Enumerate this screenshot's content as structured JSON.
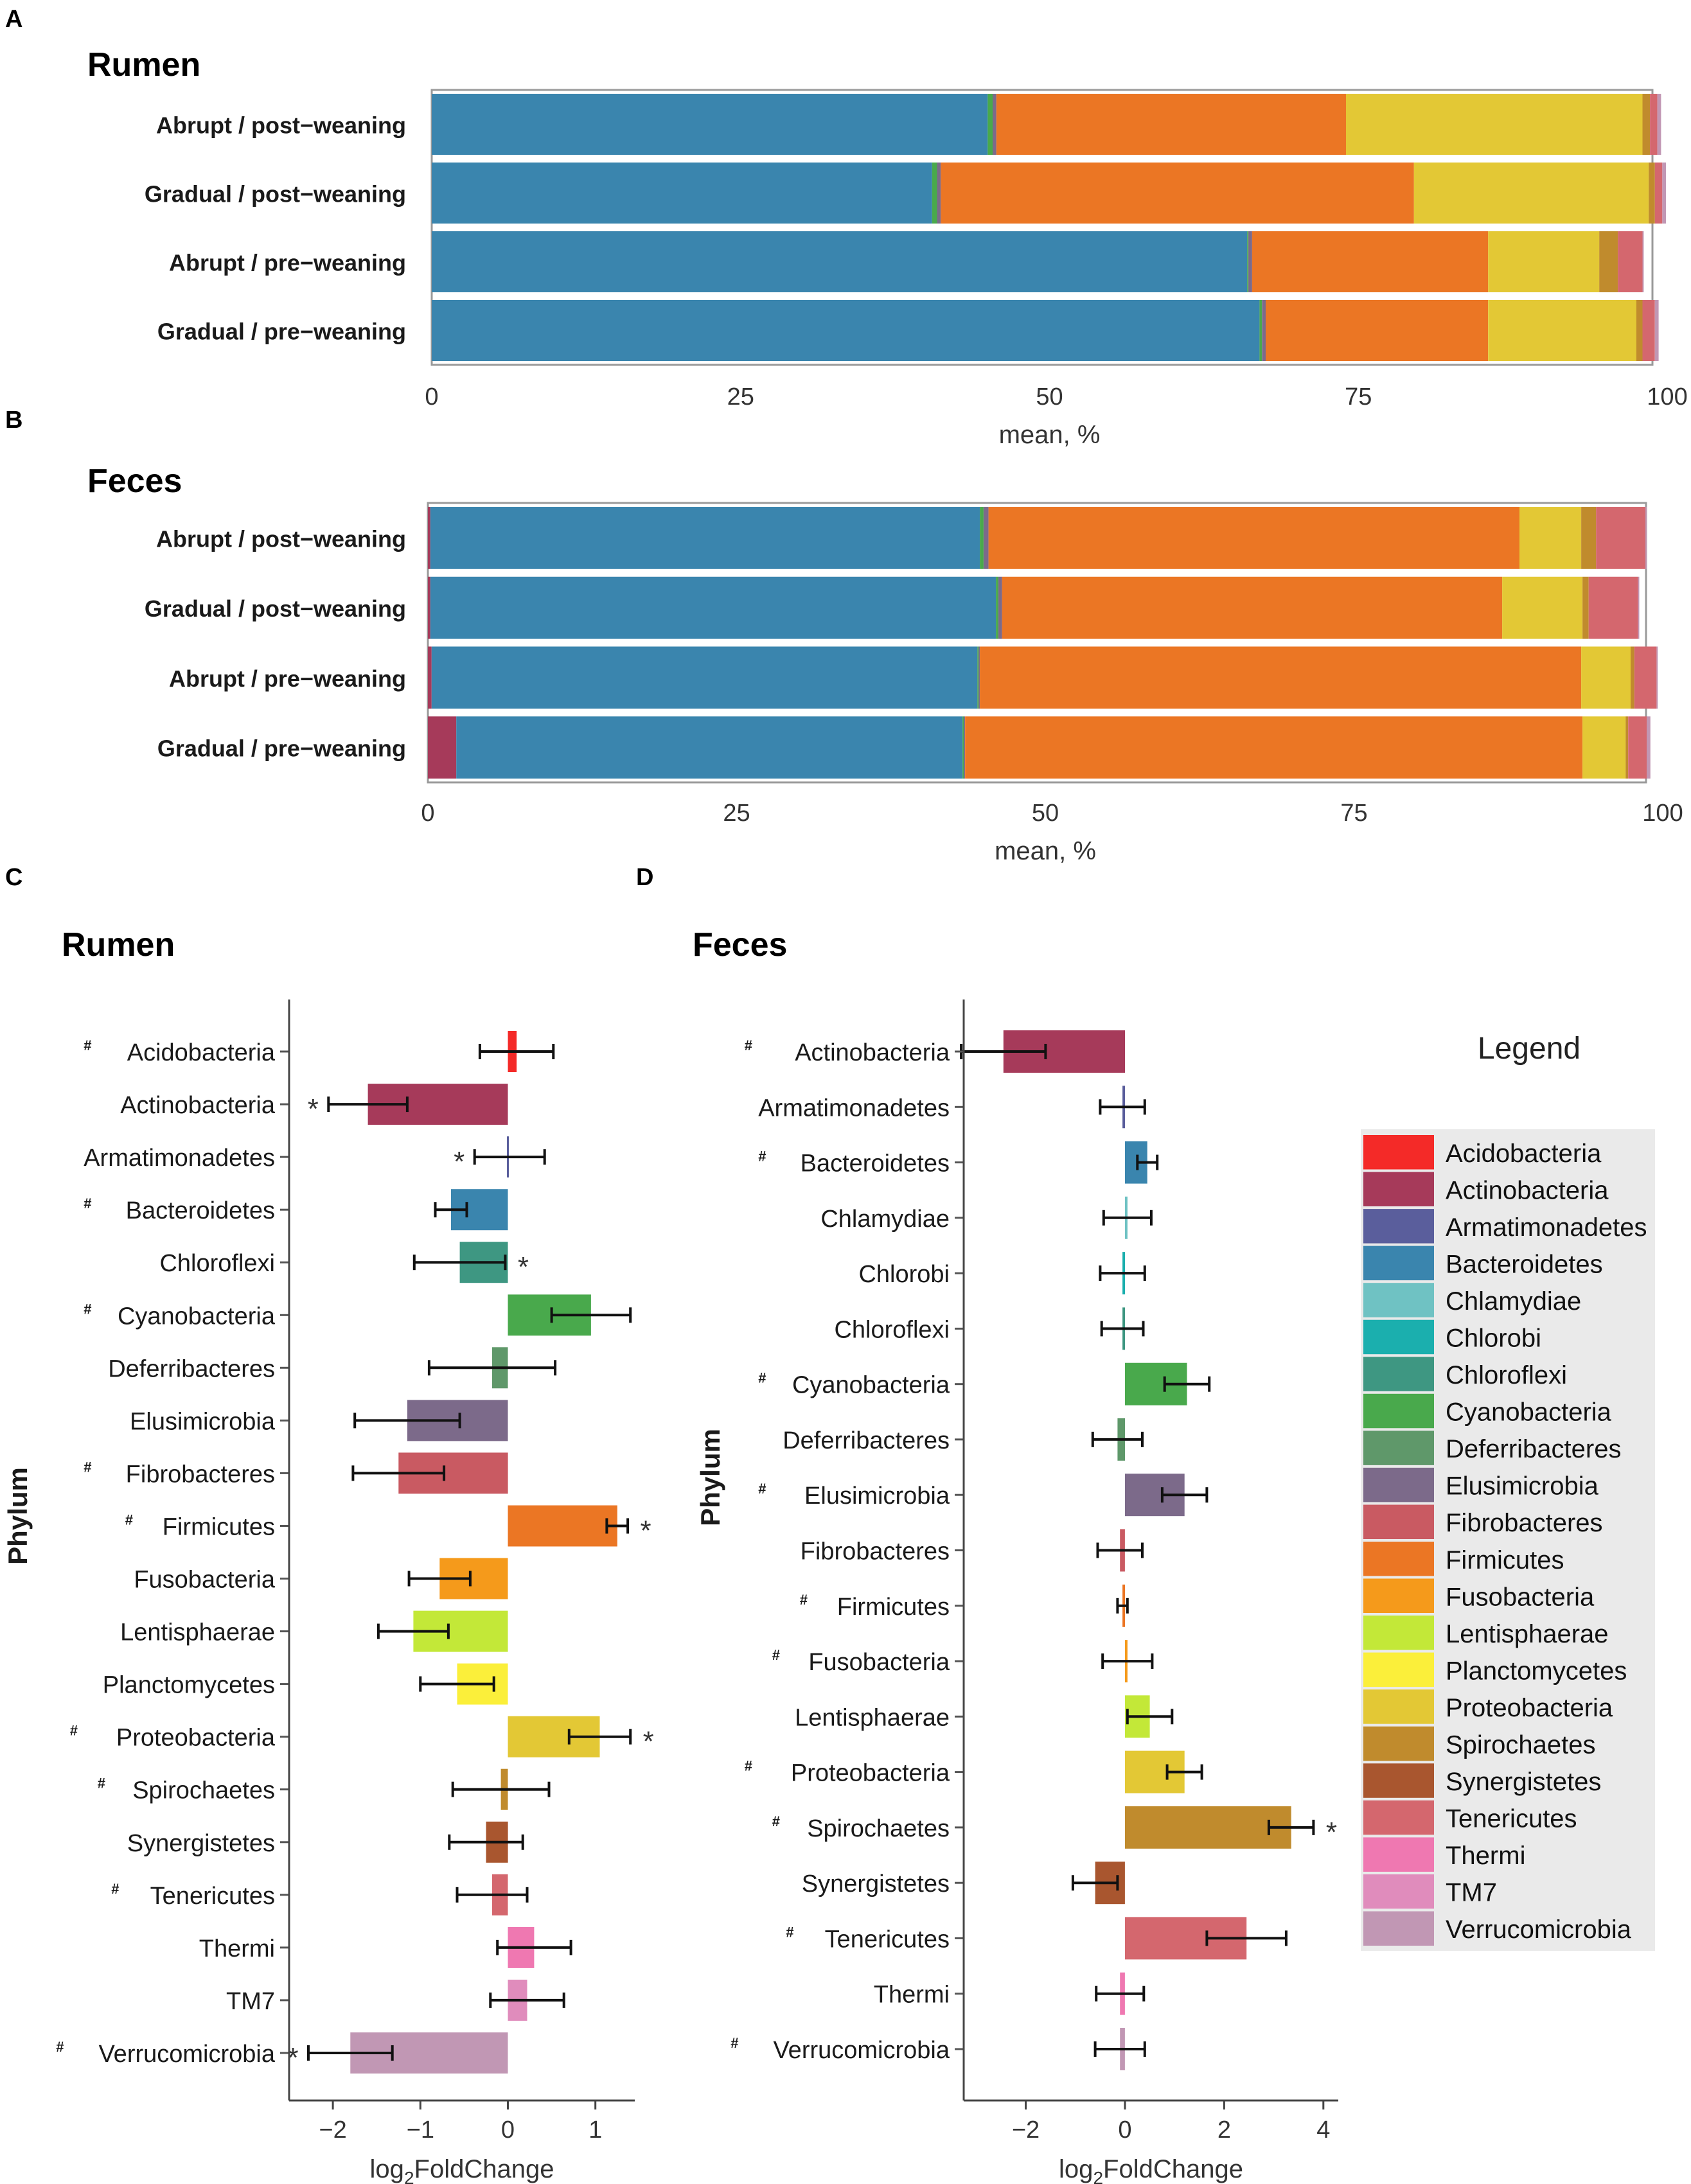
{
  "figure": {
    "panel_labels": [
      "A",
      "B",
      "C",
      "D"
    ],
    "titles": {
      "A": "Rumen",
      "B": "Feces",
      "C": "Rumen",
      "D": "Feces"
    }
  },
  "legend": {
    "title": "Legend",
    "items": [
      {
        "name": "Acidobacteria",
        "color": "#F42A28"
      },
      {
        "name": "Actinobacteria",
        "color": "#A63A5A"
      },
      {
        "name": "Armatimonadetes",
        "color": "#5A5E9C"
      },
      {
        "name": "Bacteroidetes",
        "color": "#3A85AE"
      },
      {
        "name": "Chlamydiae",
        "color": "#6FC2C3"
      },
      {
        "name": "Chlorobi",
        "color": "#1BAFAE"
      },
      {
        "name": "Chloroflexi",
        "color": "#3E9782"
      },
      {
        "name": "Cyanobacteria",
        "color": "#49A94C"
      },
      {
        "name": "Deferribacteres",
        "color": "#5F986A"
      },
      {
        "name": "Elusimicrobia",
        "color": "#7C6A8A"
      },
      {
        "name": "Fibrobacteres",
        "color": "#C95A62"
      },
      {
        "name": "Firmicutes",
        "color": "#EB7624"
      },
      {
        "name": "Fusobacteria",
        "color": "#F59A1B"
      },
      {
        "name": "Lentisphaerae",
        "color": "#C3E838"
      },
      {
        "name": "Planctomycetes",
        "color": "#FBEF3A"
      },
      {
        "name": "Proteobacteria",
        "color": "#E3C835"
      },
      {
        "name": "Spirochaetes",
        "color": "#C08B2D"
      },
      {
        "name": "Synergistetes",
        "color": "#A9562F"
      },
      {
        "name": "Tenericutes",
        "color": "#D4676E"
      },
      {
        "name": "Thermi",
        "color": "#EF78B1"
      },
      {
        "name": "TM7",
        "color": "#E08CBC"
      },
      {
        "name": "Verrucomicrobia",
        "color": "#C197B4"
      }
    ]
  },
  "chart_data": [
    {
      "panel": "A",
      "type": "bar",
      "stacked": true,
      "orientation": "horizontal",
      "title": "Rumen",
      "xlabel": "mean, %",
      "xlim": [
        0,
        100
      ],
      "xticks": [
        "0",
        "25",
        "50",
        "75",
        "100"
      ],
      "categories": [
        "Abrupt / post−weaning",
        "Gradual / post−weaning",
        "Abrupt / pre−weaning",
        "Gradual / pre−weaning"
      ],
      "series": [
        {
          "name": "Bacteroidetes",
          "values": [
            45.0,
            40.5,
            66.0,
            67.0
          ]
        },
        {
          "name": "Cyanobacteria",
          "values": [
            0.4,
            0.4,
            0.1,
            0.2
          ]
        },
        {
          "name": "Elusimicrobia",
          "values": [
            0.3,
            0.3,
            0.3,
            0.3
          ]
        },
        {
          "name": "Firmicutes",
          "values": [
            28.3,
            38.3,
            19.1,
            18.0
          ]
        },
        {
          "name": "Proteobacteria",
          "values": [
            24.0,
            19.0,
            9.0,
            12.0
          ]
        },
        {
          "name": "Spirochaetes",
          "values": [
            0.6,
            0.5,
            1.5,
            0.5
          ]
        },
        {
          "name": "Tenericutes",
          "values": [
            0.6,
            0.6,
            2.0,
            1.0
          ]
        },
        {
          "name": "Verrucomicrobia",
          "values": [
            0.3,
            0.3,
            0.1,
            0.3
          ]
        }
      ]
    },
    {
      "panel": "B",
      "type": "bar",
      "stacked": true,
      "orientation": "horizontal",
      "title": "Feces",
      "xlabel": "mean, %",
      "xlim": [
        0,
        100
      ],
      "xticks": [
        "0",
        "25",
        "50",
        "75",
        "100"
      ],
      "categories": [
        "Abrupt / post−weaning",
        "Gradual / post−weaning",
        "Abrupt / pre−weaning",
        "Gradual / pre−weaning"
      ],
      "series": [
        {
          "name": "Actinobacteria",
          "values": [
            0.2,
            0.2,
            0.3,
            2.3
          ]
        },
        {
          "name": "Bacteroidetes",
          "values": [
            44.5,
            45.8,
            44.2,
            41.0
          ]
        },
        {
          "name": "Cyanobacteria",
          "values": [
            0.3,
            0.2,
            0.1,
            0.1
          ]
        },
        {
          "name": "Elusimicrobia",
          "values": [
            0.4,
            0.3,
            0.1,
            0.1
          ]
        },
        {
          "name": "Firmicutes",
          "values": [
            43.0,
            40.5,
            48.7,
            50.0
          ]
        },
        {
          "name": "Proteobacteria",
          "values": [
            5.0,
            6.5,
            4.0,
            3.5
          ]
        },
        {
          "name": "Spirochaetes",
          "values": [
            1.2,
            0.5,
            0.3,
            0.2
          ]
        },
        {
          "name": "Tenericutes",
          "values": [
            4.0,
            4.0,
            1.8,
            1.5
          ]
        },
        {
          "name": "Verrucomicrobia",
          "values": [
            0.1,
            0.1,
            0.1,
            0.3
          ]
        }
      ]
    },
    {
      "panel": "C",
      "type": "bar",
      "orientation": "horizontal",
      "title": "Rumen",
      "xlabel": "log2FoldChange",
      "ylabel": "Phylum",
      "xlim": [
        -2.5,
        1.45
      ],
      "xticks": [
        "−2",
        "−1",
        "0",
        "1"
      ],
      "categories": [
        "Acidobacteria",
        "Actinobacteria",
        "Armatimonadetes",
        "Bacteroidetes",
        "Chloroflexi",
        "Cyanobacteria",
        "Deferribacteres",
        "Elusimicrobia",
        "Fibrobacteres",
        "Firmicutes",
        "Fusobacteria",
        "Lentisphaerae",
        "Planctomycetes",
        "Proteobacteria",
        "Spirochaetes",
        "Synergistetes",
        "Tenericutes",
        "Thermi",
        "TM7",
        "Verrucomicrobia"
      ],
      "hash_marked": [
        true,
        false,
        false,
        true,
        false,
        true,
        false,
        false,
        true,
        true,
        false,
        false,
        false,
        true,
        true,
        false,
        true,
        false,
        false,
        true
      ],
      "values": [
        0.1,
        -1.6,
        0.02,
        -0.65,
        -0.55,
        0.95,
        -0.18,
        -1.15,
        -1.25,
        1.25,
        -0.78,
        -1.08,
        -0.58,
        1.05,
        -0.08,
        -0.25,
        -0.18,
        0.3,
        0.22,
        -1.8
      ],
      "errors": [
        0.42,
        0.45,
        0.4,
        0.18,
        0.52,
        0.45,
        0.72,
        0.6,
        0.52,
        0.12,
        0.35,
        0.4,
        0.42,
        0.35,
        0.55,
        0.42,
        0.4,
        0.42,
        0.42,
        0.48
      ],
      "significance": [
        {
          "row": 1,
          "side": "left",
          "label": "*"
        },
        {
          "row": 2,
          "side": "left",
          "label": "*"
        },
        {
          "row": 4,
          "side": "right",
          "label": "*"
        },
        {
          "row": 9,
          "side": "right",
          "label": "*"
        },
        {
          "row": 13,
          "side": "right",
          "label": "*"
        },
        {
          "row": 19,
          "side": "left",
          "label": "*"
        }
      ]
    },
    {
      "panel": "D",
      "type": "bar",
      "orientation": "horizontal",
      "title": "Feces",
      "xlabel": "log2FoldChange",
      "ylabel": "Phylum",
      "xlim": [
        -3.25,
        4.3
      ],
      "xticks": [
        "−2",
        "0",
        "2",
        "4"
      ],
      "categories": [
        "Actinobacteria",
        "Armatimonadetes",
        "Bacteroidetes",
        "Chlamydiae",
        "Chlorobi",
        "Chloroflexi",
        "Cyanobacteria",
        "Deferribacteres",
        "Elusimicrobia",
        "Fibrobacteres",
        "Firmicutes",
        "Fusobacteria",
        "Lentisphaerae",
        "Proteobacteria",
        "Spirochaetes",
        "Synergistetes",
        "Tenericutes",
        "Thermi",
        "Verrucomicrobia"
      ],
      "hash_marked": [
        true,
        false,
        true,
        false,
        false,
        false,
        true,
        false,
        true,
        false,
        true,
        true,
        false,
        true,
        true,
        false,
        true,
        false,
        true
      ],
      "values": [
        -2.45,
        -0.05,
        0.45,
        0.05,
        -0.05,
        -0.05,
        1.25,
        -0.15,
        1.2,
        -0.1,
        -0.05,
        0.05,
        0.5,
        1.2,
        3.35,
        -0.6,
        2.45,
        -0.1,
        -0.1
      ],
      "errors": [
        0.85,
        0.45,
        0.2,
        0.48,
        0.45,
        0.42,
        0.45,
        0.5,
        0.45,
        0.45,
        0.1,
        0.5,
        0.45,
        0.35,
        0.45,
        0.45,
        0.8,
        0.48,
        0.5
      ],
      "significance": [
        {
          "row": 14,
          "side": "right",
          "label": "*"
        }
      ]
    }
  ]
}
